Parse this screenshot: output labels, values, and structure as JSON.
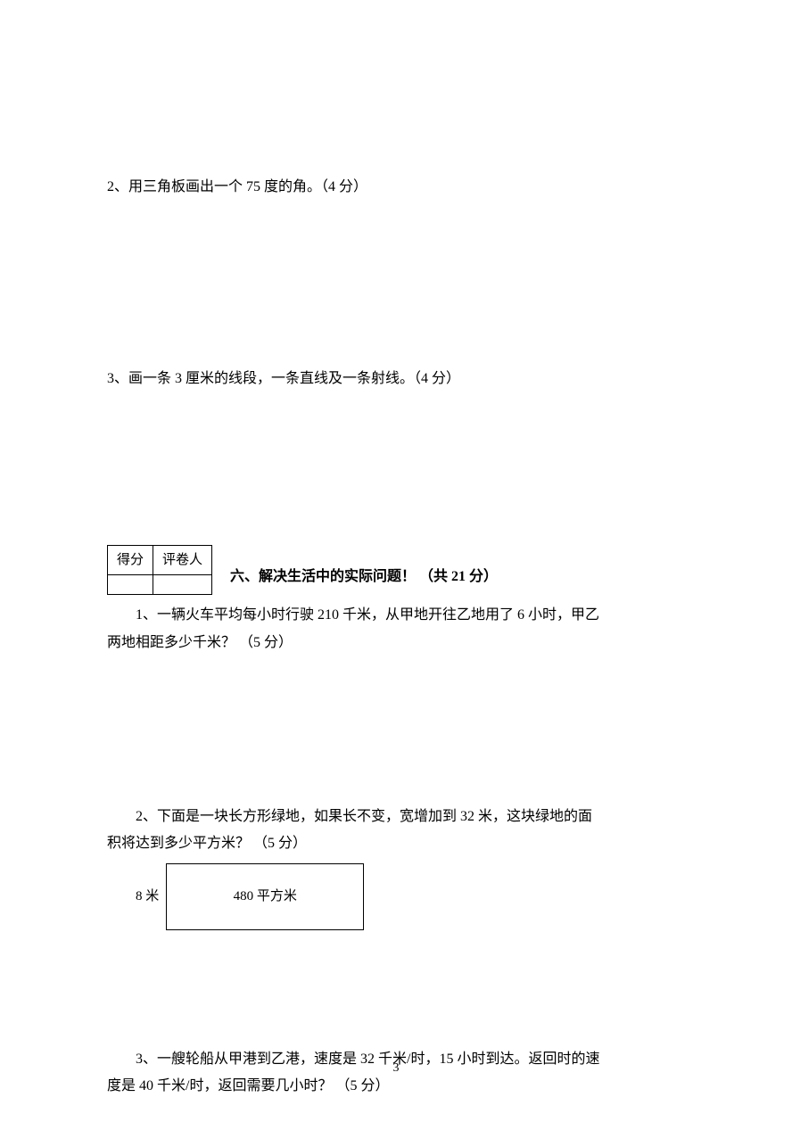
{
  "q2": {
    "text": "2、用三角板画出一个 75 度的角。（4 分）"
  },
  "q3top": {
    "text": "3、画一条 3 厘米的线段，一条直线及一条射线。（4 分）"
  },
  "scoreTable": {
    "header1": "得分",
    "header2": "评卷人"
  },
  "section6": {
    "title": "六、解决生活中的实际问题！ （共 21 分）"
  },
  "q6_1": {
    "line1": "1、一辆火车平均每小时行驶 210 千米，从甲地开往乙地用了 6 小时，甲乙",
    "line2": "两地相距多少千米？ （5 分）"
  },
  "q6_2": {
    "line1": "2、下面是一块长方形绿地，如果长不变，宽增加到 32 米，这块绿地的面",
    "line2": "积将达到多少平方米？ （5 分）"
  },
  "rect": {
    "label": "8 米",
    "area": "480 平方米"
  },
  "q6_3": {
    "line1": "3、一艘轮船从甲港到乙港，速度是 32 千米/时，15 小时到达。返回时的速",
    "line2": "度是 40 千米/时，返回需要几小时？ （5 分）"
  },
  "pageNum": "3"
}
